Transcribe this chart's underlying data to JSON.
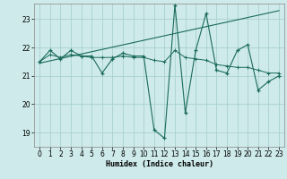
{
  "xlabel": "Humidex (Indice chaleur)",
  "xlim": [
    -0.5,
    23.5
  ],
  "ylim": [
    18.5,
    23.55
  ],
  "yticks": [
    19,
    20,
    21,
    22,
    23
  ],
  "xticks": [
    0,
    1,
    2,
    3,
    4,
    5,
    6,
    7,
    8,
    9,
    10,
    11,
    12,
    13,
    14,
    15,
    16,
    17,
    18,
    19,
    20,
    21,
    22,
    23
  ],
  "bg_color": "#ceeaea",
  "grid_color": "#aad0d0",
  "line_color": "#1a6b5a",
  "main_x": [
    0,
    1,
    2,
    3,
    4,
    5,
    6,
    7,
    8,
    9,
    10,
    11,
    12,
    13,
    14,
    15,
    16,
    17,
    18,
    19,
    20,
    21,
    22,
    23
  ],
  "main_y": [
    21.5,
    21.9,
    21.6,
    21.9,
    21.7,
    21.7,
    21.1,
    21.6,
    21.8,
    21.7,
    21.7,
    19.1,
    18.8,
    23.5,
    19.7,
    21.9,
    23.2,
    21.2,
    21.1,
    21.9,
    22.1,
    20.5,
    20.8,
    21.0
  ],
  "smooth_x": [
    0,
    1,
    2,
    3,
    4,
    5,
    6,
    7,
    8,
    9,
    10,
    11,
    12,
    13,
    14,
    15,
    16,
    17,
    18,
    19,
    20,
    21,
    22,
    23
  ],
  "smooth_y": [
    21.5,
    21.75,
    21.65,
    21.75,
    21.7,
    21.65,
    21.65,
    21.65,
    21.7,
    21.65,
    21.65,
    21.55,
    21.5,
    21.9,
    21.65,
    21.6,
    21.55,
    21.4,
    21.35,
    21.3,
    21.3,
    21.2,
    21.1,
    21.1
  ],
  "trend_x": [
    0,
    23
  ],
  "trend_y": [
    21.45,
    23.3
  ]
}
